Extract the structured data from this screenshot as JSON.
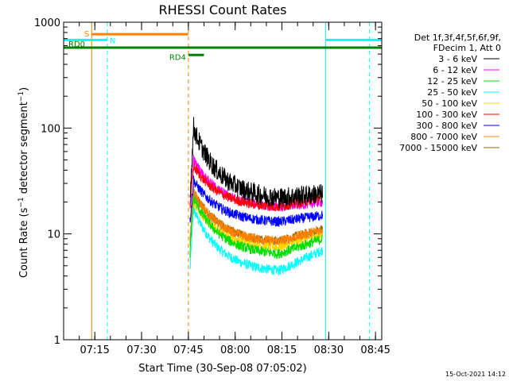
{
  "chart_data": {
    "type": "line",
    "title": "RHESSI Count Rates",
    "xlabel": "Start Time (30-Sep-08 07:05:02)",
    "ylabel": "Count Rate (s⁻¹ detector segment⁻¹)",
    "ylabel_parts": {
      "a": "Count Rate (s",
      "b": "−1",
      "c": " detector segment",
      "d": "−1",
      "e": ")"
    },
    "y_scale": "log",
    "ylim": [
      1,
      1000
    ],
    "xlim_minutes": [
      0,
      102
    ],
    "x_ticks": [
      {
        "label": "07:15",
        "t": 10
      },
      {
        "label": "07:30",
        "t": 25
      },
      {
        "label": "07:45",
        "t": 40
      },
      {
        "label": "08:00",
        "t": 55
      },
      {
        "label": "08:15",
        "t": 70
      },
      {
        "label": "08:30",
        "t": 85
      },
      {
        "label": "08:45",
        "t": 100
      }
    ],
    "y_ticks": [
      {
        "label": "1",
        "v": 1
      },
      {
        "label": "10",
        "v": 10
      },
      {
        "label": "100",
        "v": 100
      },
      {
        "label": "1000",
        "v": 1000
      }
    ],
    "legend_header": [
      "Det 1f,3f,4f,5f,6f,9f,",
      "FDecim 1, Att 0"
    ],
    "grid": false,
    "legend_position": "right",
    "series": [
      {
        "name": "3 - 6 keV",
        "color": "#000000",
        "t_start": 40.5,
        "t_end": 83,
        "peak": 105,
        "min": 22,
        "end": 24
      },
      {
        "name": "6 - 12 keV",
        "color": "#ff00ff",
        "t_start": 40.5,
        "t_end": 83,
        "peak": 52,
        "min": 18,
        "end": 20
      },
      {
        "name": "12 - 25 keV",
        "color": "#00dd00",
        "t_start": 40.5,
        "t_end": 83,
        "peak": 23,
        "min": 6.5,
        "end": 9
      },
      {
        "name": "25 - 50 keV",
        "color": "#00ffff",
        "t_start": 40.5,
        "t_end": 83,
        "peak": 18,
        "min": 4.5,
        "end": 7
      },
      {
        "name": "50 - 100 keV",
        "color": "#ffd700",
        "t_start": 40.5,
        "t_end": 83,
        "peak": 21,
        "min": 7.5,
        "end": 10
      },
      {
        "name": "100 - 300 keV",
        "color": "#ff0000",
        "t_start": 40.5,
        "t_end": 83,
        "peak": 45,
        "min": 18,
        "end": 22
      },
      {
        "name": "300 - 800 keV",
        "color": "#0000ff",
        "t_start": 40.5,
        "t_end": 83,
        "peak": 33,
        "min": 13,
        "end": 15
      },
      {
        "name": "800 - 7000 keV",
        "color": "#ff8000",
        "t_start": 40.5,
        "t_end": 83,
        "peak": 26,
        "min": 8.5,
        "end": 11
      },
      {
        "name": "7000 - 15000 keV",
        "color": "#996600",
        "t_start": 40.5,
        "t_end": 83,
        "peak": 26,
        "min": 8.5,
        "end": 11
      }
    ],
    "annotations": [
      {
        "label": "S",
        "color": "#ff8000",
        "t_start": 9,
        "t_end": 40,
        "level": 770
      },
      {
        "label": "N",
        "color": "#00ffff",
        "t_start": 0,
        "t_end": 14,
        "level": 680
      },
      {
        "label": "",
        "color": "#00ffff",
        "t_start": 84,
        "t_end": 102,
        "level": 680
      },
      {
        "label": "RD0",
        "color": "#008000",
        "t_start": 0,
        "t_end": 102,
        "level": 575
      },
      {
        "label": "RD4",
        "color": "#008000",
        "t_start": 40,
        "t_end": 45,
        "level": 490
      }
    ],
    "vlines": [
      {
        "t": 0,
        "color": "#00ffff",
        "dashed": false
      },
      {
        "t": 9,
        "color": "#ff8000",
        "dashed": false
      },
      {
        "t": 14,
        "color": "#00ffff",
        "dashed": true
      },
      {
        "t": 40,
        "color": "#ff8000",
        "dashed": true
      },
      {
        "t": 84,
        "color": "#00ffff",
        "dashed": false
      },
      {
        "t": 98,
        "color": "#00ffff",
        "dashed": true
      }
    ],
    "timestamp": "15-Oct-2021 14:12"
  }
}
